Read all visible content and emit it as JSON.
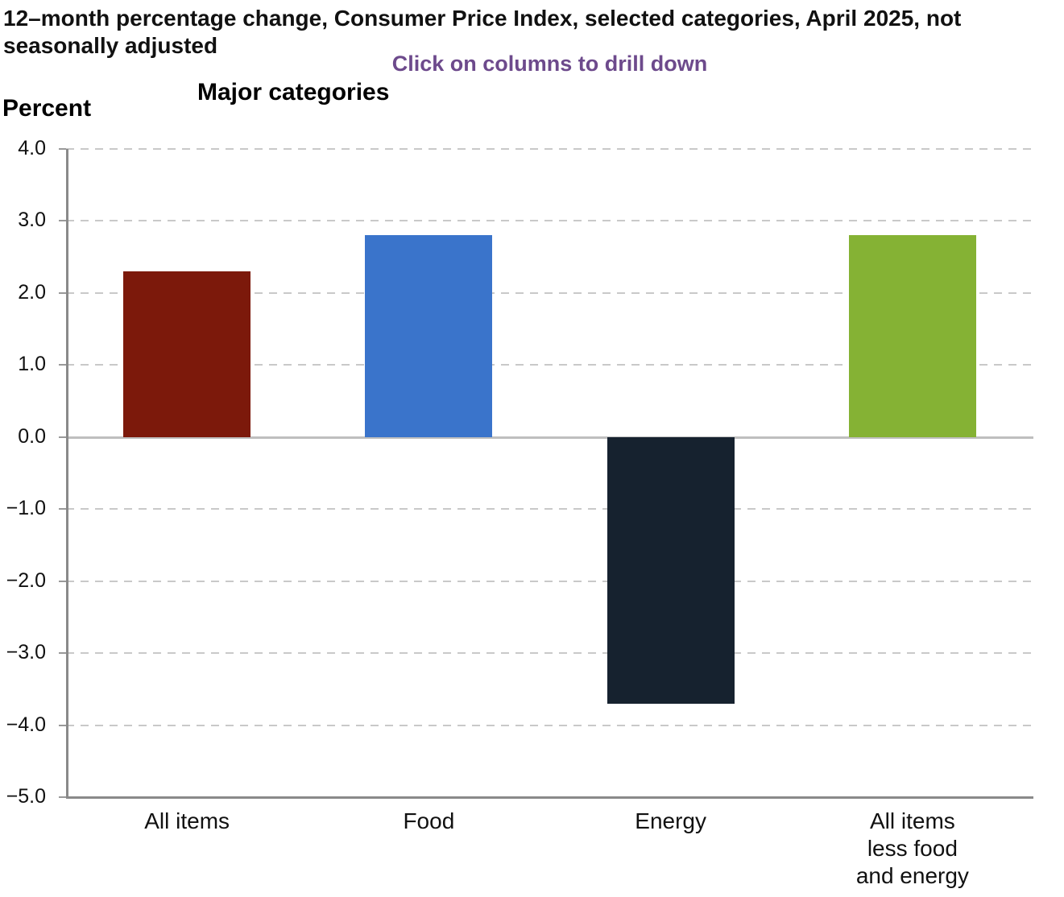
{
  "header": {
    "title": "12–month percentage change, Consumer Price Index, selected categories, April 2025, not seasonally adjusted",
    "subtitle": "Click on columns to drill down",
    "unit_label": "Percent",
    "chart_heading": "Major categories"
  },
  "colors": {
    "subtitle_purple": "#6d4a8c",
    "axis_line": "#8a8a8a",
    "gridline": "#c9c9c9",
    "zero_line": "#bfbfbf"
  },
  "chart_data": {
    "type": "bar",
    "title": "Major categories",
    "ylabel": "Percent",
    "categories": [
      "All items",
      "Food",
      "Energy",
      "All items\nless food\nand energy"
    ],
    "values": [
      2.3,
      2.8,
      -3.7,
      2.8
    ],
    "bar_colors": [
      "#7c190b",
      "#3a74cb",
      "#16222f",
      "#85b234"
    ],
    "ylim": [
      -5.0,
      4.0
    ],
    "ytick_step": 1.0,
    "ytick_labels": [
      "4.0",
      "3.0",
      "2.0",
      "1.0",
      "0.0",
      "−1.0",
      "−2.0",
      "−3.0",
      "−4.0",
      "−5.0"
    ],
    "grid": "horizontal-dashed",
    "legend_position": "none",
    "xlabel": ""
  }
}
